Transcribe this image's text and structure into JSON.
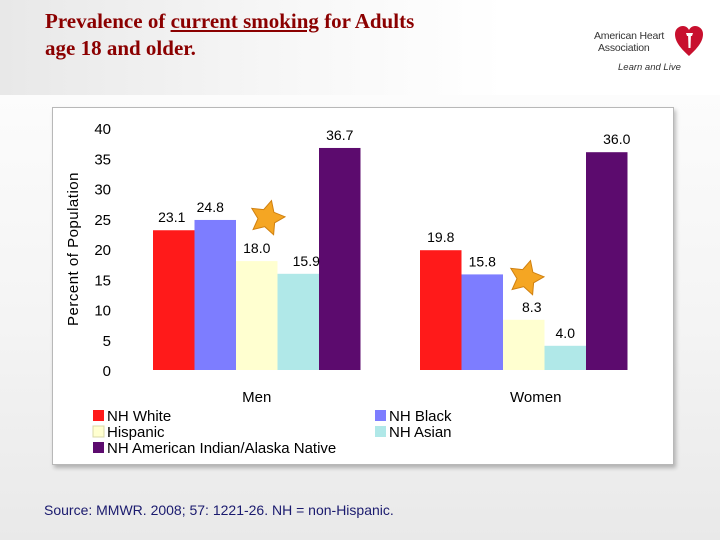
{
  "title": {
    "prefix": "Prevalence of ",
    "underlined": "current smoking",
    "suffix": " for Adults",
    "line2": "age 18 and older."
  },
  "logo": {
    "org_line1": "American Heart",
    "org_line2": "Association",
    "tagline": "Learn and Live",
    "colors": {
      "torch": "#c8102e"
    }
  },
  "source": "Source: MMWR. 2008; 57: 1221-26.   NH = non-Hispanic.",
  "chart_data": {
    "type": "bar",
    "categories": [
      "Men",
      "Women"
    ],
    "ylabel": "Percent of Population",
    "ylim": [
      0,
      40
    ],
    "yticks": [
      0,
      5,
      10,
      15,
      20,
      25,
      30,
      35,
      40
    ],
    "series": [
      {
        "name": "NH White",
        "values": [
          23.1,
          19.8
        ],
        "labels": [
          "23.1",
          "19.8"
        ],
        "color": "#ff1a1a"
      },
      {
        "name": "NH Black",
        "values": [
          24.8,
          15.8
        ],
        "labels": [
          "24.8",
          "15.8"
        ],
        "color": "#7d7dff"
      },
      {
        "name": "Hispanic",
        "values": [
          18.0,
          8.3
        ],
        "labels": [
          "18.0",
          "8.3"
        ],
        "color": "#ffffd0"
      },
      {
        "name": "NH Asian",
        "values": [
          15.9,
          4.0
        ],
        "labels": [
          "15.9",
          "4.0"
        ],
        "color": "#b0e8e8"
      },
      {
        "name": "NH American Indian/Alaska Native",
        "values": [
          36.7,
          36.0
        ],
        "labels": [
          "36.7",
          "36.0"
        ],
        "color": "#5c0b6e"
      }
    ],
    "legend_position": "bottom",
    "annotations": [
      {
        "type": "star",
        "category": "Men",
        "color": "#f5a623"
      },
      {
        "type": "star",
        "category": "Women",
        "color": "#f5a623"
      }
    ],
    "grid": false
  }
}
